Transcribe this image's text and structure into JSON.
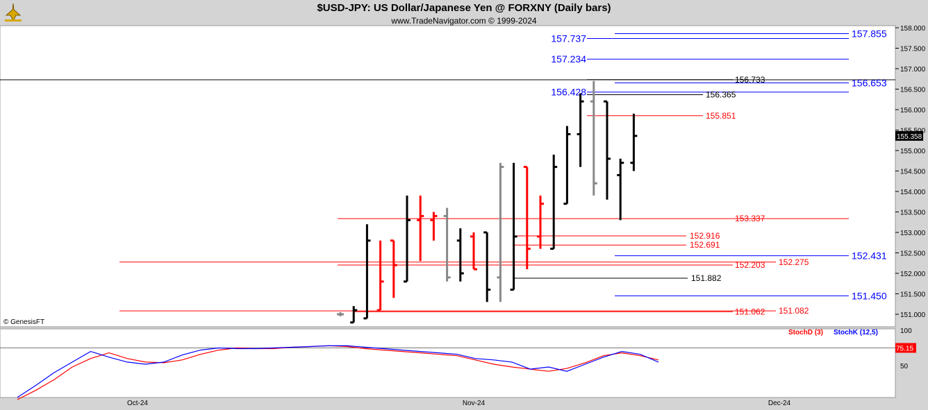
{
  "header": {
    "title": "$USD-JPY:  US Dollar/Japanese Yen @ FORXNY  (Daily bars)",
    "subtitle": "www.TradeNavigator.com © 1999-2024",
    "watermark": "© GenesisFT"
  },
  "colors": {
    "up": "#000000",
    "down": "#ff0000",
    "neutral": "#888888",
    "level_blue": "#0000ff",
    "level_red": "#ff0000",
    "level_black": "#000000",
    "stochD": "#ff0000",
    "stochK": "#0000ff"
  },
  "chart_data": {
    "type": "ohlc",
    "ylim": [
      150.8,
      158.1
    ],
    "yticks": [
      "158.000",
      "157.500",
      "157.000",
      "156.500",
      "156.000",
      "155.500",
      "155.000",
      "154.500",
      "154.000",
      "153.500",
      "153.000",
      "152.500",
      "152.000",
      "151.500",
      "151.000"
    ],
    "last_price": "155.358",
    "bars": [
      {
        "i": 0,
        "o": 151.0,
        "h": 151.05,
        "l": 150.95,
        "c": 151.0,
        "color": "neutral"
      },
      {
        "i": 1,
        "o": 150.8,
        "h": 151.2,
        "l": 150.8,
        "c": 151.1,
        "color": "up"
      },
      {
        "i": 2,
        "o": 150.9,
        "h": 153.2,
        "l": 150.9,
        "c": 152.8,
        "color": "up"
      },
      {
        "i": 3,
        "o": 151.1,
        "h": 152.8,
        "l": 151.1,
        "c": 151.8,
        "color": "down"
      },
      {
        "i": 4,
        "o": 152.8,
        "h": 152.8,
        "l": 151.4,
        "c": 152.2,
        "color": "down"
      },
      {
        "i": 5,
        "o": 151.8,
        "h": 153.9,
        "l": 151.8,
        "c": 153.3,
        "color": "up"
      },
      {
        "i": 6,
        "o": 153.3,
        "h": 153.9,
        "l": 152.3,
        "c": 153.4,
        "color": "down"
      },
      {
        "i": 7,
        "o": 153.3,
        "h": 153.5,
        "l": 152.8,
        "c": 153.4,
        "color": "down"
      },
      {
        "i": 8,
        "o": 153.4,
        "h": 153.6,
        "l": 151.8,
        "c": 151.9,
        "color": "neutral"
      },
      {
        "i": 9,
        "o": 152.8,
        "h": 153.1,
        "l": 151.8,
        "c": 152.0,
        "color": "up"
      },
      {
        "i": 10,
        "o": 152.9,
        "h": 153.0,
        "l": 152.1,
        "c": 152.1,
        "color": "down"
      },
      {
        "i": 11,
        "o": 153.0,
        "h": 153.0,
        "l": 151.3,
        "c": 151.6,
        "color": "up"
      },
      {
        "i": 12,
        "o": 151.9,
        "h": 154.7,
        "l": 151.3,
        "c": 154.6,
        "color": "neutral"
      },
      {
        "i": 13,
        "o": 151.6,
        "h": 154.7,
        "l": 151.6,
        "c": 152.9,
        "color": "up"
      },
      {
        "i": 14,
        "o": 154.6,
        "h": 154.6,
        "l": 152.1,
        "c": 152.6,
        "color": "down"
      },
      {
        "i": 15,
        "o": 152.9,
        "h": 153.9,
        "l": 152.6,
        "c": 153.7,
        "color": "down"
      },
      {
        "i": 16,
        "o": 152.6,
        "h": 154.9,
        "l": 152.6,
        "c": 154.6,
        "color": "up"
      },
      {
        "i": 17,
        "o": 153.7,
        "h": 155.6,
        "l": 153.7,
        "c": 155.4,
        "color": "up"
      },
      {
        "i": 18,
        "o": 155.4,
        "h": 156.4,
        "l": 154.6,
        "c": 156.2,
        "color": "up"
      },
      {
        "i": 19,
        "o": 156.2,
        "h": 156.7,
        "l": 153.9,
        "c": 154.2,
        "color": "neutral"
      },
      {
        "i": 20,
        "o": 156.2,
        "h": 156.2,
        "l": 153.8,
        "c": 154.8,
        "color": "up"
      },
      {
        "i": 21,
        "o": 154.4,
        "h": 154.8,
        "l": 153.3,
        "c": 154.7,
        "color": "up"
      },
      {
        "i": 22,
        "o": 154.7,
        "h": 155.9,
        "l": 154.5,
        "c": 155.358,
        "color": "up"
      }
    ],
    "levels": [
      {
        "value": 157.855,
        "label": "157.855",
        "color": "level_blue",
        "side": "right"
      },
      {
        "value": 157.737,
        "label": "157.737",
        "color": "level_blue",
        "side": "left"
      },
      {
        "value": 157.234,
        "label": "157.234",
        "color": "level_blue",
        "side": "left"
      },
      {
        "value": 156.733,
        "label": "156.733",
        "color": "level_black",
        "side": "mid"
      },
      {
        "value": 156.653,
        "label": "156.653",
        "color": "level_blue",
        "side": "right"
      },
      {
        "value": 156.428,
        "label": "156.428",
        "color": "level_blue",
        "side": "left"
      },
      {
        "value": 156.365,
        "label": "156.365",
        "color": "level_black",
        "side": "mid"
      },
      {
        "value": 155.851,
        "label": "155.851",
        "color": "level_red",
        "side": "mid"
      },
      {
        "value": 153.337,
        "label": "153.337",
        "color": "level_red",
        "side": "mid"
      },
      {
        "value": 152.916,
        "label": "152.916",
        "color": "level_red",
        "side": "mid"
      },
      {
        "value": 152.691,
        "label": "152.691",
        "color": "level_red",
        "side": "mid"
      },
      {
        "value": 152.431,
        "label": "152.431",
        "color": "level_blue",
        "side": "right"
      },
      {
        "value": 152.275,
        "label": "152.275",
        "color": "level_red",
        "side": "mid"
      },
      {
        "value": 152.203,
        "label": "152.203",
        "color": "level_red",
        "side": "mid"
      },
      {
        "value": 151.882,
        "label": "151.882",
        "color": "level_black",
        "side": "mid"
      },
      {
        "value": 151.45,
        "label": "151.450",
        "color": "level_blue",
        "side": "right"
      },
      {
        "value": 151.082,
        "label": "151.082",
        "color": "level_red",
        "side": "mid"
      },
      {
        "value": 151.062,
        "label": "151.062",
        "color": "level_red",
        "side": "mid"
      }
    ],
    "stochastic": {
      "ylim": [
        0,
        100
      ],
      "yticks": [
        "100",
        "50"
      ],
      "level_line": 75,
      "legend": [
        "StochD (3)",
        "StochK (12,5)"
      ],
      "stochD_last": "75.15",
      "stochK": [
        5,
        22,
        40,
        55,
        70,
        62,
        55,
        52,
        55,
        65,
        72,
        75,
        74,
        74,
        75,
        76,
        77,
        78,
        78,
        76,
        74,
        72,
        70,
        68,
        66,
        60,
        58,
        55,
        45,
        48,
        42,
        52,
        62,
        70,
        66,
        55
      ],
      "stochD": [
        2,
        15,
        30,
        48,
        60,
        68,
        60,
        55,
        54,
        58,
        66,
        72,
        75,
        74,
        74,
        76,
        77,
        78,
        77,
        74,
        72,
        70,
        68,
        66,
        64,
        58,
        52,
        48,
        45,
        42,
        46,
        54,
        64,
        68,
        64,
        58
      ]
    },
    "xticks": [
      "Oct-24",
      "Nov-24",
      "Dec-24"
    ]
  }
}
